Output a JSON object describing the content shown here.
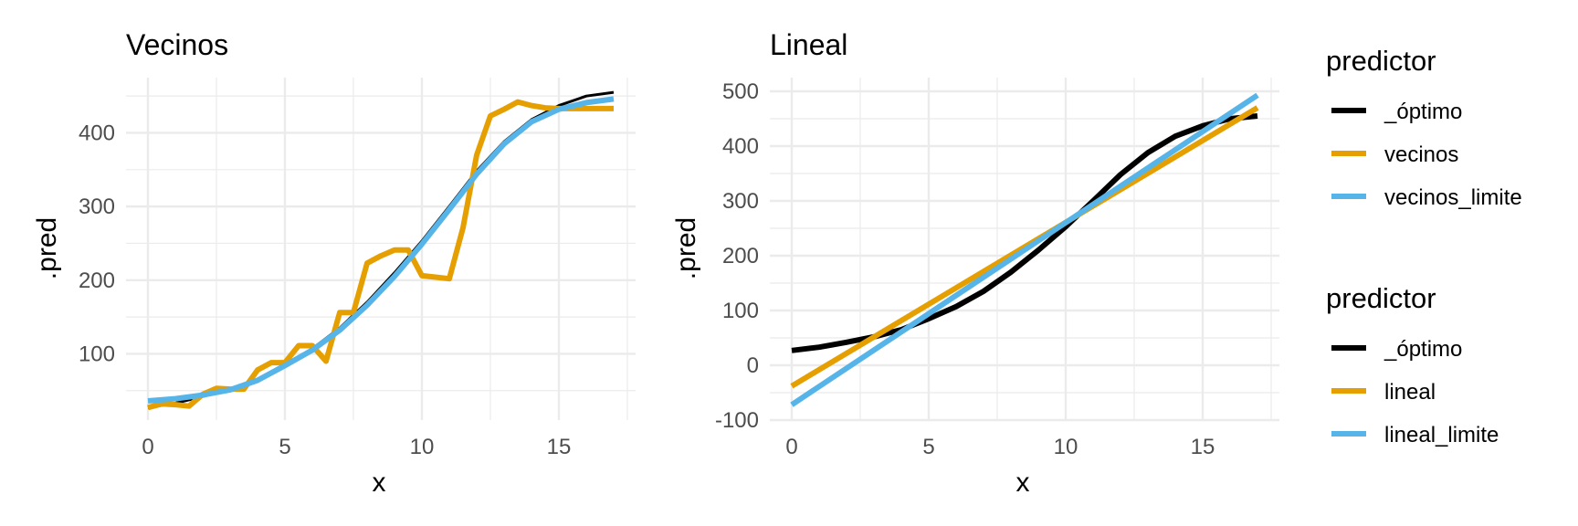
{
  "colors": {
    "optimo": "#000000",
    "vecinos": "#E69F00",
    "limite": "#56B4E9",
    "grid": "#EBEBEB"
  },
  "chart_data": [
    {
      "type": "line",
      "title": "Vecinos",
      "xlabel": "x",
      "ylabel": ".pred",
      "xlim": [
        -0.8,
        17.8
      ],
      "ylim": [
        10,
        475
      ],
      "xticks": [
        0,
        5,
        10,
        15
      ],
      "yticks": [
        100,
        200,
        300,
        400
      ],
      "series": [
        {
          "name": "_óptimo",
          "color": "#000000",
          "width": 3,
          "x": [
            0,
            1,
            2,
            3,
            4,
            5,
            6,
            7,
            8,
            9,
            10,
            11,
            12,
            13,
            14,
            15,
            16,
            17
          ],
          "y": [
            27,
            33,
            42,
            52,
            65,
            85,
            107,
            135,
            170,
            210,
            253,
            300,
            348,
            388,
            418,
            437,
            450,
            455
          ]
        },
        {
          "name": "vecinos",
          "color": "#E69F00",
          "width": 6,
          "x": [
            0,
            0.5,
            1,
            1.5,
            2,
            2.5,
            3,
            3.5,
            4,
            4.5,
            5,
            5.5,
            6,
            6.5,
            7,
            7.5,
            8,
            8.5,
            9,
            9.5,
            10,
            10.5,
            11,
            11.5,
            12,
            12.5,
            13,
            13.5,
            14,
            14.5,
            15,
            15.5,
            16,
            16.5,
            17
          ],
          "y": [
            27,
            32,
            31,
            29,
            45,
            53,
            52,
            52,
            78,
            88,
            88,
            111,
            111,
            90,
            156,
            156,
            223,
            233,
            241,
            241,
            206,
            204,
            202,
            271,
            370,
            423,
            432,
            442,
            437,
            434,
            433,
            433,
            433,
            433,
            433
          ]
        },
        {
          "name": "vecinos_limite",
          "color": "#56B4E9",
          "width": 6,
          "x": [
            0,
            1,
            2,
            3,
            4,
            5,
            6,
            7,
            8,
            9,
            10,
            11,
            12,
            13,
            14,
            15,
            16,
            17
          ],
          "y": [
            36,
            39,
            44,
            51,
            64,
            84,
            105,
            132,
            166,
            205,
            249,
            296,
            344,
            385,
            415,
            432,
            441,
            446
          ]
        }
      ]
    },
    {
      "type": "line",
      "title": "Lineal",
      "xlabel": "x",
      "ylabel": ".pred",
      "xlim": [
        -0.8,
        17.8
      ],
      "ylim": [
        -100,
        525
      ],
      "xticks": [
        0,
        5,
        10,
        15
      ],
      "yticks": [
        -100,
        0,
        100,
        200,
        300,
        400,
        500
      ],
      "series": [
        {
          "name": "_óptimo",
          "color": "#000000",
          "width": 6,
          "x": [
            0,
            1,
            2,
            3,
            4,
            5,
            6,
            7,
            8,
            9,
            10,
            11,
            12,
            13,
            14,
            15,
            16,
            17
          ],
          "y": [
            27,
            33,
            42,
            52,
            65,
            85,
            107,
            135,
            170,
            210,
            253,
            300,
            348,
            388,
            418,
            437,
            450,
            455
          ]
        },
        {
          "name": "lineal",
          "color": "#E69F00",
          "width": 6,
          "x": [
            0,
            17
          ],
          "y": [
            -38,
            470
          ]
        },
        {
          "name": "lineal_limite",
          "color": "#56B4E9",
          "width": 6,
          "x": [
            0,
            17
          ],
          "y": [
            -72,
            493
          ]
        }
      ]
    }
  ],
  "legends": [
    {
      "title": "predictor",
      "items": [
        {
          "label": "_óptimo",
          "color": "#000000"
        },
        {
          "label": "vecinos",
          "color": "#E69F00"
        },
        {
          "label": "vecinos_limite",
          "color": "#56B4E9"
        }
      ]
    },
    {
      "title": "predictor",
      "items": [
        {
          "label": "_óptimo",
          "color": "#000000"
        },
        {
          "label": "lineal",
          "color": "#E69F00"
        },
        {
          "label": "lineal_limite",
          "color": "#56B4E9"
        }
      ]
    }
  ]
}
